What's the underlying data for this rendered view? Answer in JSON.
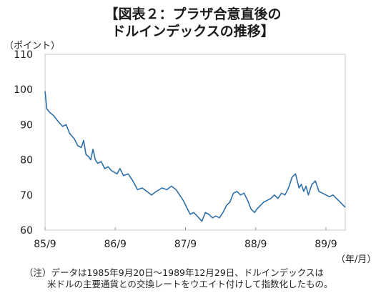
{
  "title_line1": "【図表２：プラザ合意直後の",
  "title_line2": "ドルインデックスの推移】",
  "y_unit": "（ポイント）",
  "x_unit": "（年/月）",
  "note_line1": "（注）データは1985年9月20日～1989年12月29日、ドルインデックスは",
  "note_line2": "米ドルの主要通貨との交換レートをウエイト付けして指数化したもの。",
  "chart_data": {
    "type": "line",
    "x_tick_labels": [
      "85/9",
      "86/9",
      "87/9",
      "88/9",
      "89/9"
    ],
    "y_tick_labels": [
      "60",
      "70",
      "80",
      "90",
      "100",
      "110"
    ],
    "ylim": [
      60,
      110
    ],
    "xlim_months": [
      0,
      51.3
    ],
    "grid": false,
    "line_color": "#2e6fa8",
    "series": [
      {
        "x_months": [
          0,
          0.3,
          0.8,
          1.5,
          2.2,
          3.0,
          3.6,
          4.2,
          5.0,
          5.6,
          6.2,
          6.6,
          7.0,
          7.4,
          7.8,
          8.2,
          8.6,
          9.0,
          9.6,
          10.2,
          10.8,
          11.3,
          11.8,
          12.3,
          12.8,
          13.4,
          14.2,
          15.0,
          15.8,
          16.6,
          17.4,
          18.2,
          19.0,
          20.0,
          20.8,
          21.6,
          22.4,
          23.0,
          23.6,
          24.2,
          24.8,
          25.4,
          26.0,
          26.8,
          27.4,
          28.0,
          28.6,
          29.2,
          29.8,
          30.4,
          31.0,
          31.6,
          32.2,
          32.8,
          33.4,
          34.0,
          34.6,
          35.2,
          35.8,
          36.2,
          36.8,
          37.4,
          38.0,
          38.6,
          39.2,
          39.8,
          40.4,
          41.0,
          41.6,
          42.2,
          42.8,
          43.4,
          43.8,
          44.2,
          44.6,
          45.0,
          45.6,
          46.2,
          46.8,
          47.4,
          48.0,
          48.6,
          49.2,
          49.8,
          50.4,
          51.0,
          51.3
        ],
        "values": [
          99.5,
          94.5,
          93.5,
          92.5,
          91,
          89.5,
          90,
          87.5,
          86,
          84,
          83.5,
          85.5,
          81.5,
          81,
          80,
          83,
          80,
          79,
          79.5,
          77.5,
          78,
          77,
          76.5,
          76,
          77.5,
          75.5,
          76,
          74,
          71.5,
          72,
          71,
          70,
          71,
          72,
          71.5,
          72.5,
          71.5,
          70,
          68.5,
          66.5,
          64.5,
          65,
          64,
          62.5,
          65,
          64.5,
          63.5,
          64,
          63.5,
          65,
          67,
          68,
          70.5,
          71,
          70,
          70.5,
          68.5,
          66,
          65,
          66,
          67,
          68,
          68.5,
          69,
          70,
          69,
          70.5,
          70,
          72,
          75,
          76,
          72,
          73,
          71,
          72.5,
          70,
          73,
          74,
          71,
          70.5,
          70,
          69.5,
          70,
          69,
          68,
          67,
          66.5
        ]
      }
    ]
  }
}
